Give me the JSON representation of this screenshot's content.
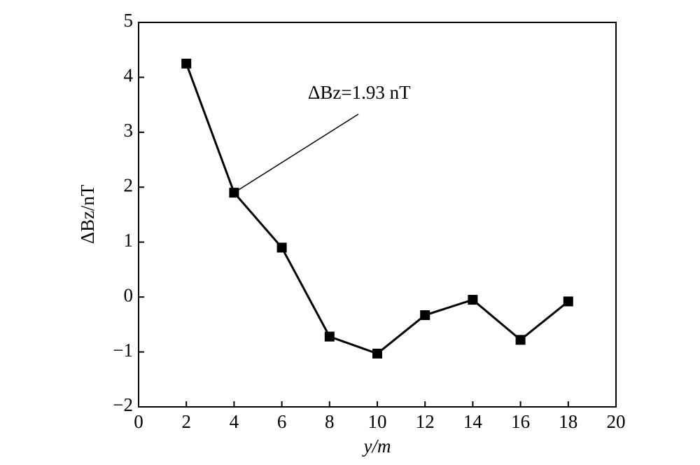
{
  "chart_data": {
    "type": "line",
    "xlabel": "y/m",
    "ylabel": "ΔBz/nT",
    "x": [
      2,
      4,
      6,
      8,
      10,
      12,
      14,
      16,
      18
    ],
    "series": [
      {
        "color": "#000000",
        "values": [
          4.25,
          1.9,
          0.9,
          -0.72,
          -1.03,
          -0.33,
          -0.05,
          -0.78,
          -0.08
        ]
      }
    ],
    "xlim": [
      0,
      20
    ],
    "xticks": [
      0,
      2,
      4,
      6,
      8,
      10,
      12,
      14,
      16,
      18,
      20
    ],
    "ylim": [
      -2,
      5
    ],
    "yticks": [
      {
        "value": -2,
        "label": "−2"
      },
      {
        "value": -1,
        "label": "−1"
      },
      0,
      1,
      2,
      3,
      4,
      5
    ],
    "annotation": "ΔBz=1.93 nT"
  }
}
